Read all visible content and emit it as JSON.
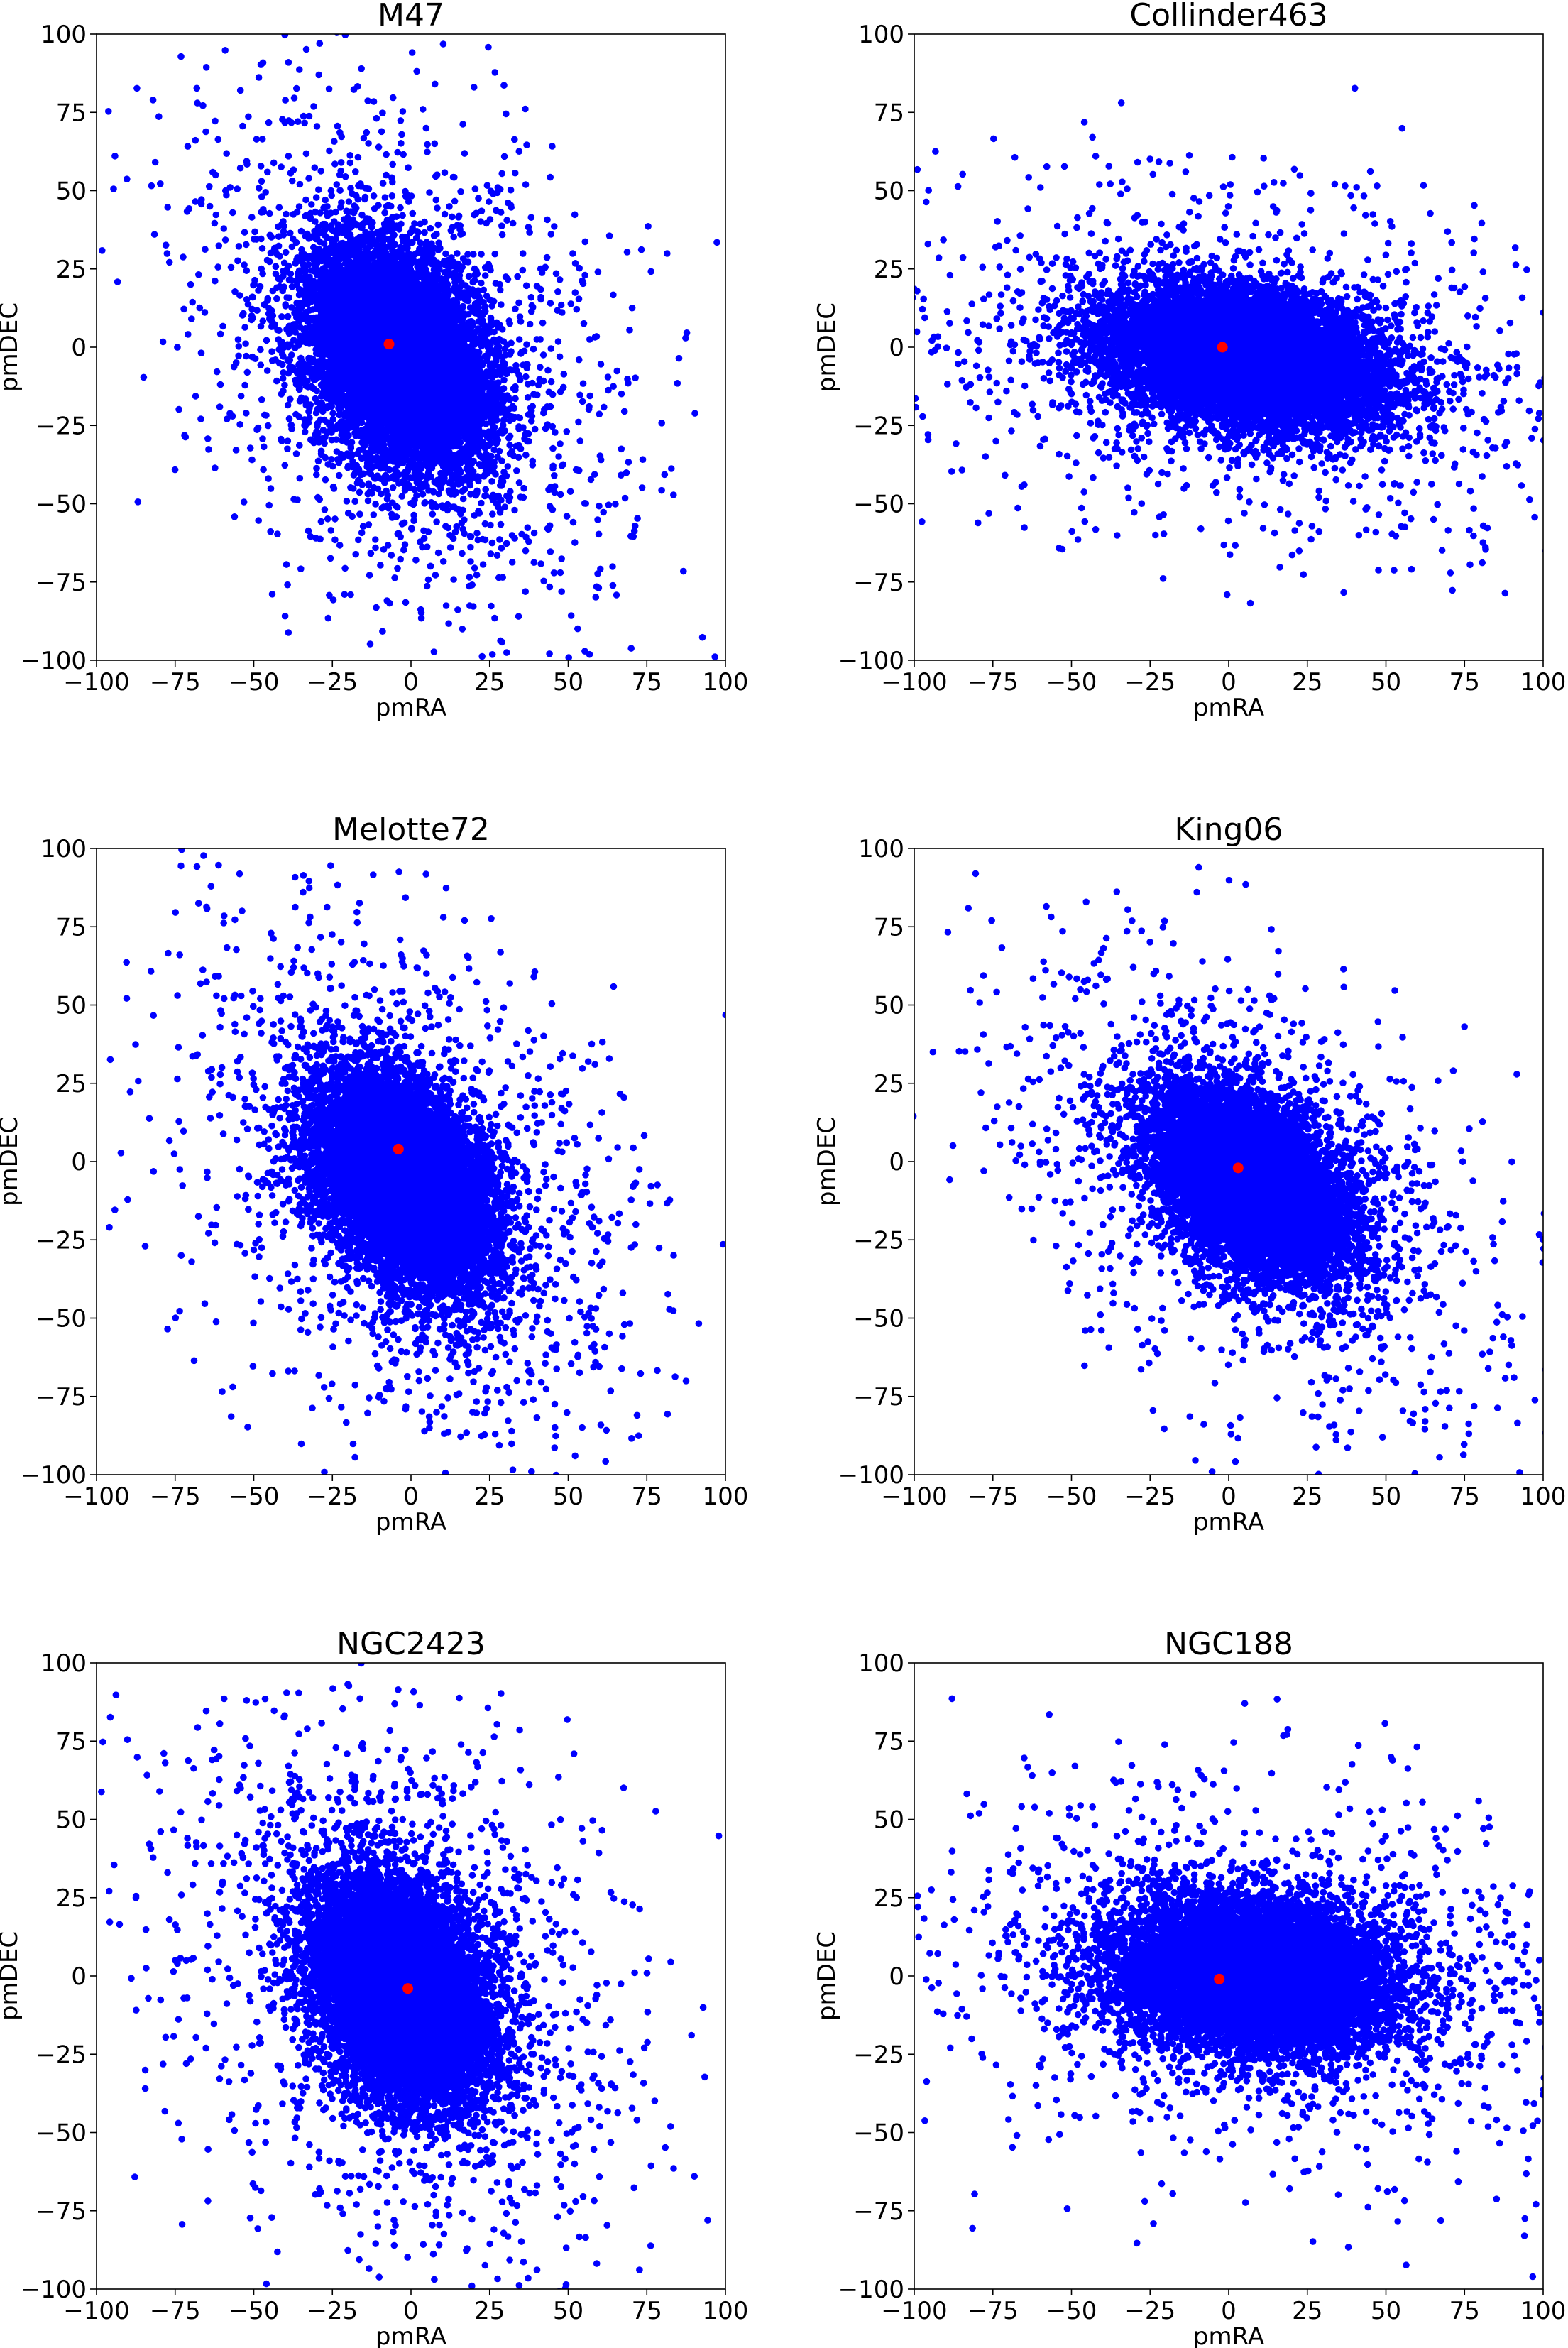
{
  "figure": {
    "axis_color": "#000000",
    "background": "#ffffff",
    "point_color": "#0000ff",
    "center_color": "#ff0000"
  },
  "chart_data": [
    {
      "type": "scatter",
      "title": "M47",
      "xlabel": "pmRA",
      "ylabel": "pmDEC",
      "xlim": [
        -100,
        100
      ],
      "ylim": [
        -100,
        100
      ],
      "xticks": [
        "−100",
        "−75",
        "−50",
        "−25",
        "0",
        "25",
        "50",
        "75",
        "100"
      ],
      "yticks": [
        "−100",
        "−75",
        "−50",
        "−25",
        "0",
        "25",
        "50",
        "75",
        "100"
      ],
      "cluster_center": {
        "x": -7,
        "y": 1
      },
      "field_distribution": {
        "n_points": 11000,
        "mean": [
          -4,
          -3
        ],
        "sd": [
          14,
          17
        ],
        "corr": -0.35,
        "outlier_fraction": 0.13
      },
      "grid": false,
      "legend": false
    },
    {
      "type": "scatter",
      "title": "Collinder463",
      "xlabel": "pmRA",
      "ylabel": "pmDEC",
      "xlim": [
        -100,
        100
      ],
      "ylim": [
        -100,
        100
      ],
      "xticks": [
        "−100",
        "−75",
        "−50",
        "−25",
        "0",
        "25",
        "50",
        "75",
        "100"
      ],
      "yticks": [
        "−100",
        "−75",
        "−50",
        "−25",
        "0",
        "25",
        "50",
        "75",
        "100"
      ],
      "cluster_center": {
        "x": -2,
        "y": 0
      },
      "field_distribution": {
        "n_points": 11000,
        "mean": [
          5,
          -3
        ],
        "sd": [
          22,
          11
        ],
        "corr": -0.3,
        "outlier_fraction": 0.12
      },
      "grid": false,
      "legend": false
    },
    {
      "type": "scatter",
      "title": "Melotte72",
      "xlabel": "pmRA",
      "ylabel": "pmDEC",
      "xlim": [
        -100,
        100
      ],
      "ylim": [
        -100,
        100
      ],
      "xticks": [
        "−100",
        "−75",
        "−50",
        "−25",
        "0",
        "25",
        "50",
        "75",
        "100"
      ],
      "yticks": [
        "−100",
        "−75",
        "−50",
        "−25",
        "0",
        "25",
        "50",
        "75",
        "100"
      ],
      "cluster_center": {
        "x": -4,
        "y": 4
      },
      "field_distribution": {
        "n_points": 11000,
        "mean": [
          -2,
          -6
        ],
        "sd": [
          14,
          17
        ],
        "corr": -0.4,
        "outlier_fraction": 0.13
      },
      "grid": false,
      "legend": false
    },
    {
      "type": "scatter",
      "title": "King06",
      "xlabel": "pmRA",
      "ylabel": "pmDEC",
      "xlim": [
        -100,
        100
      ],
      "ylim": [
        -100,
        100
      ],
      "xticks": [
        "−100",
        "−75",
        "−50",
        "−25",
        "0",
        "25",
        "50",
        "75",
        "100"
      ],
      "yticks": [
        "−100",
        "−75",
        "−50",
        "−25",
        "0",
        "25",
        "50",
        "75",
        "100"
      ],
      "cluster_center": {
        "x": 3,
        "y": -2
      },
      "field_distribution": {
        "n_points": 11000,
        "mean": [
          7,
          -7
        ],
        "sd": [
          15,
          14
        ],
        "corr": -0.45,
        "outlier_fraction": 0.13
      },
      "grid": false,
      "legend": false
    },
    {
      "type": "scatter",
      "title": "NGC2423",
      "xlabel": "pmRA",
      "ylabel": "pmDEC",
      "xlim": [
        -100,
        100
      ],
      "ylim": [
        -100,
        100
      ],
      "xticks": [
        "−100",
        "−75",
        "−50",
        "−25",
        "0",
        "25",
        "50",
        "75",
        "100"
      ],
      "yticks": [
        "−100",
        "−75",
        "−50",
        "−25",
        "0",
        "25",
        "50",
        "75",
        "100"
      ],
      "cluster_center": {
        "x": -1,
        "y": -4
      },
      "field_distribution": {
        "n_points": 11000,
        "mean": [
          -3,
          -4
        ],
        "sd": [
          14,
          18
        ],
        "corr": -0.3,
        "outlier_fraction": 0.13
      },
      "grid": false,
      "legend": false
    },
    {
      "type": "scatter",
      "title": "NGC188",
      "xlabel": "pmRA",
      "ylabel": "pmDEC",
      "xlim": [
        -100,
        100
      ],
      "ylim": [
        -100,
        100
      ],
      "xticks": [
        "−100",
        "−75",
        "−50",
        "−25",
        "0",
        "25",
        "50",
        "75",
        "100"
      ],
      "yticks": [
        "−100",
        "−75",
        "−50",
        "−25",
        "0",
        "25",
        "50",
        "75",
        "100"
      ],
      "cluster_center": {
        "x": -3,
        "y": -1
      },
      "field_distribution": {
        "n_points": 11000,
        "mean": [
          8,
          0
        ],
        "sd": [
          22,
          12
        ],
        "corr": -0.15,
        "outlier_fraction": 0.12
      },
      "grid": false,
      "legend": false
    }
  ]
}
